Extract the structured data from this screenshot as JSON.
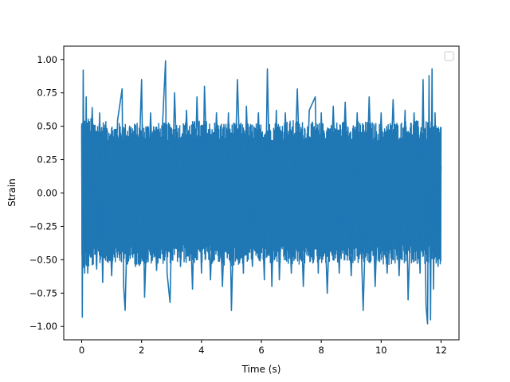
{
  "chart_data": {
    "type": "line",
    "title": "",
    "xlabel": "Time (s)",
    "ylabel": "Strain",
    "xlim": [
      -0.6,
      12.6
    ],
    "ylim": [
      -1.1,
      1.1
    ],
    "xticks": [
      0,
      2,
      4,
      6,
      8,
      10,
      12
    ],
    "xtick_labels": [
      "0",
      "2",
      "4",
      "6",
      "8",
      "10",
      "12"
    ],
    "yticks": [
      -1.0,
      -0.75,
      -0.5,
      -0.25,
      0.0,
      0.25,
      0.5,
      0.75,
      1.0
    ],
    "ytick_labels": [
      "−1.00",
      "−0.75",
      "−0.50",
      "−0.25",
      "0.00",
      "0.25",
      "0.50",
      "0.75",
      "1.00"
    ],
    "grid": false,
    "legend": {
      "location": "top-right",
      "entries": []
    },
    "series": [
      {
        "color": "#1f77b4",
        "x_range": [
          0,
          12
        ],
        "points": [
          [
            0.0,
            0.5
          ],
          [
            0.02,
            -0.93
          ],
          [
            0.05,
            0.92
          ],
          [
            0.1,
            -0.6
          ],
          [
            0.15,
            0.72
          ],
          [
            0.2,
            -0.6
          ],
          [
            0.35,
            0.64
          ],
          [
            0.5,
            -0.57
          ],
          [
            0.6,
            0.6
          ],
          [
            0.7,
            -0.67
          ],
          [
            0.8,
            0.52
          ],
          [
            1.0,
            -0.62
          ],
          [
            1.2,
            0.55
          ],
          [
            1.35,
            0.78
          ],
          [
            1.4,
            -0.7
          ],
          [
            1.45,
            -0.88
          ],
          [
            1.6,
            0.5
          ],
          [
            1.8,
            -0.55
          ],
          [
            2.0,
            0.85
          ],
          [
            2.1,
            -0.78
          ],
          [
            2.3,
            0.6
          ],
          [
            2.5,
            -0.58
          ],
          [
            2.7,
            0.52
          ],
          [
            2.8,
            0.99
          ],
          [
            2.85,
            -0.6
          ],
          [
            2.95,
            -0.82
          ],
          [
            3.1,
            0.75
          ],
          [
            3.3,
            -0.55
          ],
          [
            3.5,
            0.62
          ],
          [
            3.7,
            -0.72
          ],
          [
            3.85,
            0.72
          ],
          [
            4.0,
            -0.6
          ],
          [
            4.1,
            0.8
          ],
          [
            4.3,
            -0.65
          ],
          [
            4.5,
            0.6
          ],
          [
            4.7,
            -0.7
          ],
          [
            4.9,
            0.6
          ],
          [
            5.0,
            -0.88
          ],
          [
            5.2,
            0.85
          ],
          [
            5.4,
            -0.6
          ],
          [
            5.5,
            0.65
          ],
          [
            5.7,
            -0.55
          ],
          [
            5.9,
            0.6
          ],
          [
            6.1,
            -0.65
          ],
          [
            6.2,
            0.93
          ],
          [
            6.35,
            -0.7
          ],
          [
            6.5,
            0.62
          ],
          [
            6.6,
            -0.65
          ],
          [
            6.8,
            0.6
          ],
          [
            7.0,
            -0.6
          ],
          [
            7.2,
            0.78
          ],
          [
            7.4,
            -0.7
          ],
          [
            7.6,
            0.62
          ],
          [
            7.8,
            0.72
          ],
          [
            7.9,
            -0.6
          ],
          [
            8.0,
            0.6
          ],
          [
            8.2,
            -0.75
          ],
          [
            8.4,
            0.65
          ],
          [
            8.6,
            -0.6
          ],
          [
            8.8,
            0.68
          ],
          [
            9.0,
            -0.62
          ],
          [
            9.2,
            0.6
          ],
          [
            9.4,
            -0.88
          ],
          [
            9.6,
            0.72
          ],
          [
            9.8,
            -0.7
          ],
          [
            10.0,
            0.6
          ],
          [
            10.2,
            -0.6
          ],
          [
            10.4,
            0.7
          ],
          [
            10.6,
            -0.62
          ],
          [
            10.8,
            0.62
          ],
          [
            10.9,
            -0.8
          ],
          [
            11.1,
            0.6
          ],
          [
            11.3,
            -0.6
          ],
          [
            11.4,
            0.85
          ],
          [
            11.5,
            -0.85
          ],
          [
            11.55,
            -0.98
          ],
          [
            11.6,
            0.88
          ],
          [
            11.65,
            -0.95
          ],
          [
            11.7,
            0.93
          ],
          [
            11.75,
            -0.72
          ],
          [
            11.8,
            0.6
          ],
          [
            11.9,
            -0.55
          ],
          [
            12.0,
            0.2
          ]
        ],
        "envelope": [
          [
            0.0,
            0.55,
            -0.55
          ],
          [
            1.0,
            0.5,
            -0.5
          ],
          [
            2.0,
            0.5,
            -0.52
          ],
          [
            3.0,
            0.5,
            -0.5
          ],
          [
            4.0,
            0.52,
            -0.5
          ],
          [
            5.0,
            0.5,
            -0.52
          ],
          [
            6.0,
            0.5,
            -0.5
          ],
          [
            7.0,
            0.52,
            -0.52
          ],
          [
            8.0,
            0.5,
            -0.5
          ],
          [
            9.0,
            0.52,
            -0.5
          ],
          [
            10.0,
            0.5,
            -0.52
          ],
          [
            11.0,
            0.52,
            -0.5
          ],
          [
            12.0,
            0.5,
            -0.52
          ]
        ]
      }
    ]
  }
}
